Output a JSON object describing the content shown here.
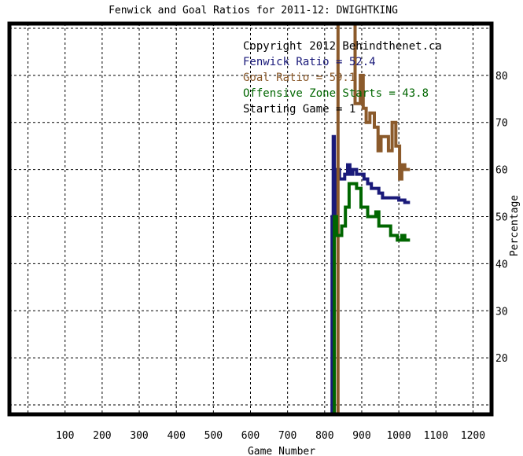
{
  "chart_data": {
    "type": "line",
    "title": "Fenwick and Goal Ratios for 2011-12: DWIGHTKING",
    "xlabel": "Game Number",
    "ylabel": "Percentage",
    "xlim": [
      -50,
      1250
    ],
    "ylim": [
      8,
      91
    ],
    "xticks": [
      100,
      200,
      300,
      400,
      500,
      600,
      700,
      800,
      900,
      1000,
      1100,
      1200
    ],
    "yticks": [
      20,
      30,
      40,
      50,
      60,
      70,
      80
    ],
    "grid": true,
    "legend_position": "top-right",
    "annotations": [
      {
        "text": "Copyright 2012 Behindthenet.ca",
        "color": "#000000"
      },
      {
        "text": "Starting Game = 1",
        "color": "#000000"
      }
    ],
    "series": [
      {
        "name": "Fenwick Ratio = 52.4",
        "color": "#1a1a7a",
        "x": [
          820,
          820,
          823,
          823,
          826,
          826,
          831,
          831,
          834,
          834,
          840,
          840,
          848,
          848,
          854,
          854,
          862,
          862,
          868,
          868,
          876,
          876,
          886,
          886,
          896,
          896,
          906,
          906,
          916,
          916,
          926,
          926,
          936,
          936,
          946,
          946,
          956,
          956,
          966,
          966,
          986,
          986,
          1000,
          1000,
          1016,
          1016,
          1030
        ],
        "y": [
          8,
          50,
          50,
          67,
          67,
          50,
          50,
          55,
          55,
          60,
          60,
          58,
          58,
          58,
          58,
          59,
          59,
          61,
          61,
          59,
          59,
          60,
          60,
          59,
          59,
          59,
          59,
          58,
          58,
          57,
          57,
          56,
          56,
          56,
          56,
          55,
          55,
          54,
          54,
          54,
          54,
          54,
          54,
          53.5,
          53.5,
          53,
          53
        ]
      },
      {
        "name": "Goal Ratio = 59.1",
        "color": "#8b5a2b",
        "x": [
          836,
          836,
          840,
          840,
          848,
          848,
          856,
          856,
          866,
          866,
          872,
          872,
          882,
          882,
          896,
          896,
          904,
          904,
          912,
          912,
          922,
          922,
          934,
          934,
          944,
          944,
          952,
          952,
          966,
          966,
          972,
          972,
          982,
          982,
          992,
          992,
          1002,
          1002,
          1008,
          1008,
          1016,
          1016,
          1030
        ],
        "y": [
          8,
          91,
          91,
          91,
          91,
          91,
          91,
          91,
          91,
          91,
          91,
          91,
          91,
          74,
          74,
          80,
          80,
          73,
          73,
          70,
          70,
          72,
          72,
          69,
          69,
          64,
          64,
          67,
          67,
          67,
          67,
          64,
          64,
          70,
          70,
          65,
          65,
          58,
          58,
          61,
          61,
          60,
          60
        ]
      },
      {
        "name": "Offensive Zone Starts = 43.8",
        "color": "#006600",
        "x": [
          826,
          826,
          832,
          832,
          838,
          838,
          846,
          846,
          856,
          856,
          866,
          866,
          876,
          876,
          886,
          886,
          898,
          898,
          906,
          906,
          916,
          916,
          926,
          926,
          938,
          938,
          946,
          946,
          956,
          956,
          966,
          966,
          978,
          978,
          996,
          996,
          1008,
          1008,
          1016,
          1016,
          1030
        ],
        "y": [
          8,
          50,
          50,
          46,
          46,
          46,
          46,
          48,
          48,
          52,
          52,
          57,
          57,
          57,
          57,
          56,
          56,
          52,
          52,
          52,
          52,
          50,
          50,
          50,
          50,
          51,
          51,
          48,
          48,
          48,
          48,
          48,
          48,
          46,
          46,
          45,
          45,
          46,
          46,
          45,
          45
        ]
      }
    ]
  }
}
